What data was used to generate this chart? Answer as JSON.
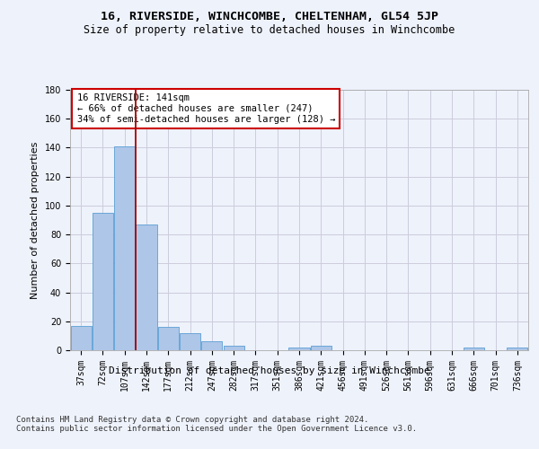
{
  "title": "16, RIVERSIDE, WINCHCOMBE, CHELTENHAM, GL54 5JP",
  "subtitle": "Size of property relative to detached houses in Winchcombe",
  "xlabel": "Distribution of detached houses by size in Winchcombe",
  "ylabel": "Number of detached properties",
  "bar_color": "#aec6e8",
  "bar_edge_color": "#5a9fd4",
  "background_color": "#eef2fb",
  "grid_color": "#ccccdd",
  "categories": [
    "37sqm",
    "72sqm",
    "107sqm",
    "142sqm",
    "177sqm",
    "212sqm",
    "247sqm",
    "282sqm",
    "317sqm",
    "351sqm",
    "386sqm",
    "421sqm",
    "456sqm",
    "491sqm",
    "526sqm",
    "561sqm",
    "596sqm",
    "631sqm",
    "666sqm",
    "701sqm",
    "736sqm"
  ],
  "values": [
    17,
    95,
    141,
    87,
    16,
    12,
    6,
    3,
    0,
    0,
    2,
    3,
    0,
    0,
    0,
    0,
    0,
    0,
    2,
    0,
    2
  ],
  "ylim": [
    0,
    180
  ],
  "yticks": [
    0,
    20,
    40,
    60,
    80,
    100,
    120,
    140,
    160,
    180
  ],
  "property_line_x": 2.5,
  "annotation_text": "16 RIVERSIDE: 141sqm\n← 66% of detached houses are smaller (247)\n34% of semi-detached houses are larger (128) →",
  "annotation_box_color": "#ffffff",
  "annotation_box_edge": "#cc0000",
  "vline_color": "#aa0000",
  "footer_text": "Contains HM Land Registry data © Crown copyright and database right 2024.\nContains public sector information licensed under the Open Government Licence v3.0.",
  "title_fontsize": 9.5,
  "subtitle_fontsize": 8.5,
  "xlabel_fontsize": 8,
  "ylabel_fontsize": 8,
  "tick_fontsize": 7,
  "annotation_fontsize": 7.5,
  "footer_fontsize": 6.5
}
